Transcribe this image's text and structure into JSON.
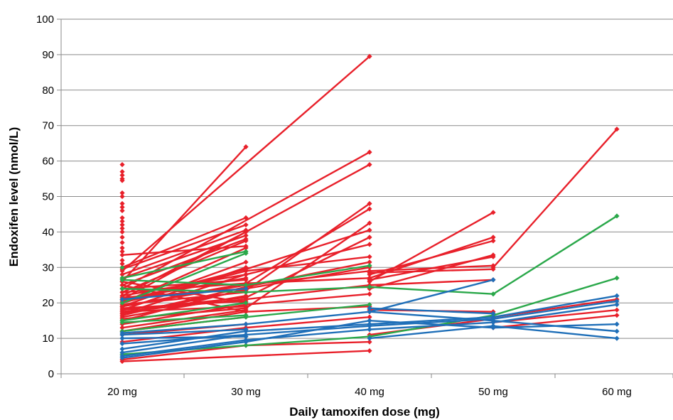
{
  "chart_data": {
    "type": "line",
    "title": "",
    "xlabel": "Daily tamoxifen dose (mg)",
    "ylabel": "Endoxifen level (nmol/L)",
    "categories": [
      "20 mg",
      "30 mg",
      "40 mg",
      "50 mg",
      "60 mg"
    ],
    "dose_values": [
      20,
      30,
      40,
      50,
      60
    ],
    "ylim": [
      0,
      100
    ],
    "yticks": [
      0,
      10,
      20,
      30,
      40,
      50,
      60,
      70,
      80,
      90,
      100
    ],
    "grid": true,
    "legend": "none",
    "colors": {
      "red": "#e8202a",
      "green": "#2aa84a",
      "blue": "#1f6fb8"
    },
    "series": [
      {
        "color": "red",
        "points": [
          [
            20,
            29
          ],
          [
            40,
            89.5
          ]
        ]
      },
      {
        "color": "red",
        "points": [
          [
            20,
            26
          ],
          [
            30,
            64
          ]
        ]
      },
      {
        "color": "red",
        "points": [
          [
            20,
            24
          ],
          [
            40,
            62.5
          ]
        ]
      },
      {
        "color": "red",
        "points": [
          [
            20,
            21
          ],
          [
            40,
            59
          ]
        ]
      },
      {
        "color": "red",
        "points": [
          [
            20,
            33.5
          ],
          [
            30,
            36
          ]
        ]
      },
      {
        "color": "red",
        "points": [
          [
            20,
            30
          ],
          [
            30,
            44
          ]
        ]
      },
      {
        "color": "red",
        "points": [
          [
            20,
            29.5
          ],
          [
            30,
            42
          ]
        ]
      },
      {
        "color": "red",
        "points": [
          [
            20,
            28
          ],
          [
            30,
            40.5
          ]
        ]
      },
      {
        "color": "red",
        "points": [
          [
            20,
            27
          ],
          [
            30,
            39
          ]
        ]
      },
      {
        "color": "red",
        "points": [
          [
            20,
            25
          ],
          [
            30,
            38
          ]
        ]
      },
      {
        "color": "red",
        "points": [
          [
            20,
            23
          ],
          [
            30,
            37.5
          ]
        ]
      },
      {
        "color": "red",
        "points": [
          [
            20,
            22
          ],
          [
            30,
            40
          ]
        ]
      },
      {
        "color": "red",
        "points": [
          [
            20,
            20
          ],
          [
            30,
            35.5
          ]
        ]
      },
      {
        "color": "red",
        "points": [
          [
            20,
            19
          ],
          [
            30,
            31.5
          ]
        ]
      },
      {
        "color": "red",
        "points": [
          [
            20,
            18
          ],
          [
            30,
            30
          ]
        ]
      },
      {
        "color": "red",
        "points": [
          [
            20,
            17
          ],
          [
            30,
            28
          ]
        ]
      },
      {
        "color": "red",
        "points": [
          [
            20,
            16
          ],
          [
            30,
            22
          ]
        ]
      },
      {
        "color": "red",
        "points": [
          [
            20,
            24
          ],
          [
            30,
            26.5
          ]
        ]
      },
      {
        "color": "red",
        "points": [
          [
            20,
            21
          ],
          [
            30,
            27
          ]
        ]
      },
      {
        "color": "red",
        "points": [
          [
            20,
            26
          ],
          [
            30,
            20
          ]
        ]
      },
      {
        "color": "red",
        "points": [
          [
            20,
            25
          ],
          [
            30,
            17.5
          ]
        ]
      },
      {
        "color": "red",
        "points": [
          [
            20,
            19.5
          ],
          [
            30,
            23
          ]
        ]
      },
      {
        "color": "red",
        "points": [
          [
            20,
            18.5
          ],
          [
            30,
            20.5
          ]
        ]
      },
      {
        "color": "red",
        "points": [
          [
            20,
            17.5
          ],
          [
            30,
            19
          ]
        ]
      },
      {
        "color": "red",
        "points": [
          [
            20,
            15
          ],
          [
            30,
            24
          ]
        ]
      },
      {
        "color": "red",
        "points": [
          [
            20,
            13
          ],
          [
            30,
            18
          ]
        ]
      },
      {
        "color": "red",
        "points": [
          [
            20,
            12
          ],
          [
            30,
            16
          ]
        ]
      },
      {
        "color": "red",
        "points": [
          [
            20,
            11
          ],
          [
            30,
            14
          ]
        ]
      },
      {
        "color": "red",
        "points": [
          [
            20,
            17
          ],
          [
            30,
            23.5
          ],
          [
            40,
            48
          ]
        ]
      },
      {
        "color": "red",
        "points": [
          [
            20,
            19
          ],
          [
            30,
            25.5
          ],
          [
            40,
            46.5
          ]
        ]
      },
      {
        "color": "red",
        "points": [
          [
            20,
            15.5
          ],
          [
            30,
            18.5
          ],
          [
            40,
            42.5
          ]
        ]
      },
      {
        "color": "red",
        "points": [
          [
            20,
            20.5
          ],
          [
            30,
            29.5
          ],
          [
            40,
            40.5
          ]
        ]
      },
      {
        "color": "red",
        "points": [
          [
            20,
            18
          ],
          [
            30,
            21.5
          ],
          [
            40,
            38.5
          ]
        ]
      },
      {
        "color": "red",
        "points": [
          [
            20,
            22
          ],
          [
            30,
            28
          ],
          [
            40,
            36.5
          ]
        ]
      },
      {
        "color": "red",
        "points": [
          [
            20,
            20
          ],
          [
            30,
            29
          ],
          [
            40,
            33
          ]
        ]
      },
      {
        "color": "red",
        "points": [
          [
            20,
            16.5
          ],
          [
            30,
            24.5
          ],
          [
            40,
            31.5
          ]
        ]
      },
      {
        "color": "red",
        "points": [
          [
            20,
            21.5
          ],
          [
            30,
            24
          ],
          [
            40,
            30
          ]
        ]
      },
      {
        "color": "red",
        "points": [
          [
            20,
            19
          ],
          [
            30,
            25
          ],
          [
            40,
            29
          ]
        ]
      },
      {
        "color": "red",
        "points": [
          [
            20,
            23
          ],
          [
            30,
            25.5
          ],
          [
            40,
            27
          ]
        ]
      },
      {
        "color": "red",
        "points": [
          [
            20,
            17.5
          ],
          [
            30,
            21
          ],
          [
            40,
            25
          ]
        ]
      },
      {
        "color": "red",
        "points": [
          [
            20,
            14
          ],
          [
            30,
            19.5
          ],
          [
            40,
            22.5
          ]
        ]
      },
      {
        "color": "red",
        "points": [
          [
            20,
            12
          ],
          [
            30,
            17.5
          ],
          [
            40,
            19
          ]
        ]
      },
      {
        "color": "red",
        "points": [
          [
            20,
            9
          ],
          [
            30,
            13
          ],
          [
            40,
            16
          ]
        ]
      },
      {
        "color": "red",
        "points": [
          [
            20,
            3.5
          ],
          [
            40,
            6.5
          ]
        ]
      },
      {
        "color": "red",
        "points": [
          [
            20,
            4
          ],
          [
            30,
            8
          ],
          [
            40,
            9
          ]
        ]
      },
      {
        "color": "red",
        "points": [
          [
            40,
            26
          ],
          [
            50,
            45.5
          ]
        ]
      },
      {
        "color": "red",
        "points": [
          [
            40,
            27
          ],
          [
            50,
            38.5
          ]
        ]
      },
      {
        "color": "red",
        "points": [
          [
            40,
            28
          ],
          [
            50,
            37.5
          ]
        ]
      },
      {
        "color": "red",
        "points": [
          [
            40,
            24
          ],
          [
            50,
            33.5
          ]
        ]
      },
      {
        "color": "red",
        "points": [
          [
            40,
            26.5
          ],
          [
            50,
            33
          ]
        ]
      },
      {
        "color": "red",
        "points": [
          [
            40,
            29
          ],
          [
            50,
            30.5
          ]
        ]
      },
      {
        "color": "red",
        "points": [
          [
            40,
            28.5
          ],
          [
            50,
            29.5
          ]
        ]
      },
      {
        "color": "red",
        "points": [
          [
            40,
            25
          ],
          [
            50,
            26.5
          ]
        ]
      },
      {
        "color": "red",
        "points": [
          [
            40,
            18
          ],
          [
            50,
            17.5
          ]
        ]
      },
      {
        "color": "red",
        "points": [
          [
            40,
            11
          ],
          [
            50,
            15.5
          ]
        ]
      },
      {
        "color": "red",
        "points": [
          [
            50,
            30
          ],
          [
            60,
            69
          ]
        ]
      },
      {
        "color": "red",
        "points": [
          [
            50,
            16
          ],
          [
            60,
            21
          ]
        ]
      },
      {
        "color": "red",
        "points": [
          [
            50,
            14.5
          ],
          [
            60,
            18
          ]
        ]
      },
      {
        "color": "red",
        "points": [
          [
            50,
            13
          ],
          [
            60,
            16.5
          ]
        ]
      },
      {
        "color": "green",
        "points": [
          [
            20,
            27
          ],
          [
            30,
            34.5
          ]
        ]
      },
      {
        "color": "green",
        "points": [
          [
            20,
            20
          ],
          [
            30,
            34
          ]
        ]
      },
      {
        "color": "green",
        "points": [
          [
            20,
            15
          ],
          [
            30,
            20
          ]
        ]
      },
      {
        "color": "green",
        "points": [
          [
            20,
            14.5
          ],
          [
            30,
            16.5
          ]
        ]
      },
      {
        "color": "green",
        "points": [
          [
            20,
            26.5
          ],
          [
            30,
            25
          ],
          [
            40,
            30.5
          ]
        ]
      },
      {
        "color": "green",
        "points": [
          [
            20,
            24
          ],
          [
            30,
            23
          ],
          [
            40,
            24.5
          ],
          [
            50,
            22.5
          ],
          [
            60,
            44.5
          ]
        ]
      },
      {
        "color": "green",
        "points": [
          [
            20,
            12
          ],
          [
            30,
            16
          ],
          [
            40,
            19.5
          ]
        ]
      },
      {
        "color": "green",
        "points": [
          [
            20,
            5.5
          ],
          [
            30,
            8
          ],
          [
            40,
            10.5
          ],
          [
            50,
            16.5
          ],
          [
            60,
            27
          ]
        ]
      },
      {
        "color": "green",
        "points": [
          [
            20,
            30
          ],
          [
            20,
            21
          ]
        ]
      },
      {
        "color": "blue",
        "points": [
          [
            20,
            21
          ],
          [
            30,
            24
          ]
        ]
      },
      {
        "color": "blue",
        "points": [
          [
            20,
            11
          ],
          [
            30,
            12.5
          ]
        ]
      },
      {
        "color": "blue",
        "points": [
          [
            20,
            10
          ],
          [
            30,
            10.5
          ]
        ]
      },
      {
        "color": "blue",
        "points": [
          [
            20,
            8.5
          ],
          [
            30,
            11
          ]
        ]
      },
      {
        "color": "blue",
        "points": [
          [
            20,
            11.5
          ],
          [
            30,
            14
          ],
          [
            40,
            17.5
          ],
          [
            50,
            26.5
          ]
        ]
      },
      {
        "color": "blue",
        "points": [
          [
            20,
            7
          ],
          [
            30,
            12
          ],
          [
            40,
            14
          ],
          [
            50,
            16
          ],
          [
            60,
            22
          ]
        ]
      },
      {
        "color": "blue",
        "points": [
          [
            20,
            6
          ],
          [
            30,
            11
          ],
          [
            40,
            13.5
          ],
          [
            50,
            15.5
          ],
          [
            60,
            20.5
          ]
        ]
      },
      {
        "color": "blue",
        "points": [
          [
            20,
            5
          ],
          [
            30,
            9.5
          ],
          [
            40,
            12.5
          ],
          [
            50,
            14.5
          ],
          [
            60,
            19.5
          ]
        ]
      },
      {
        "color": "blue",
        "points": [
          [
            20,
            4.5
          ],
          [
            30,
            9
          ],
          [
            40,
            15
          ],
          [
            50,
            13
          ],
          [
            60,
            14
          ]
        ]
      },
      {
        "color": "blue",
        "points": [
          [
            40,
            17.5
          ],
          [
            50,
            15
          ],
          [
            60,
            12
          ]
        ]
      },
      {
        "color": "blue",
        "points": [
          [
            40,
            10
          ],
          [
            50,
            13.5
          ],
          [
            60,
            10
          ]
        ]
      },
      {
        "color": "blue",
        "points": [
          [
            40,
            18.5
          ],
          [
            50,
            17
          ]
        ]
      }
    ],
    "extra_points": [
      {
        "x": 20,
        "y": 59,
        "color": "red"
      },
      {
        "x": 20,
        "y": 57,
        "color": "red"
      },
      {
        "x": 20,
        "y": 56,
        "color": "red"
      },
      {
        "x": 20,
        "y": 55,
        "color": "red"
      },
      {
        "x": 20,
        "y": 54.5,
        "color": "red"
      },
      {
        "x": 20,
        "y": 51,
        "color": "red"
      },
      {
        "x": 20,
        "y": 50,
        "color": "red"
      },
      {
        "x": 20,
        "y": 48,
        "color": "red"
      },
      {
        "x": 20,
        "y": 47,
        "color": "red"
      },
      {
        "x": 20,
        "y": 46,
        "color": "red"
      },
      {
        "x": 20,
        "y": 44,
        "color": "red"
      },
      {
        "x": 20,
        "y": 43,
        "color": "red"
      },
      {
        "x": 20,
        "y": 42,
        "color": "red"
      },
      {
        "x": 20,
        "y": 41,
        "color": "red"
      },
      {
        "x": 20,
        "y": 40,
        "color": "red"
      },
      {
        "x": 20,
        "y": 38.5,
        "color": "red"
      },
      {
        "x": 20,
        "y": 37,
        "color": "red"
      },
      {
        "x": 20,
        "y": 35.5,
        "color": "red"
      },
      {
        "x": 20,
        "y": 34.5,
        "color": "red"
      },
      {
        "x": 20,
        "y": 32,
        "color": "red"
      },
      {
        "x": 20,
        "y": 31,
        "color": "red"
      }
    ]
  }
}
